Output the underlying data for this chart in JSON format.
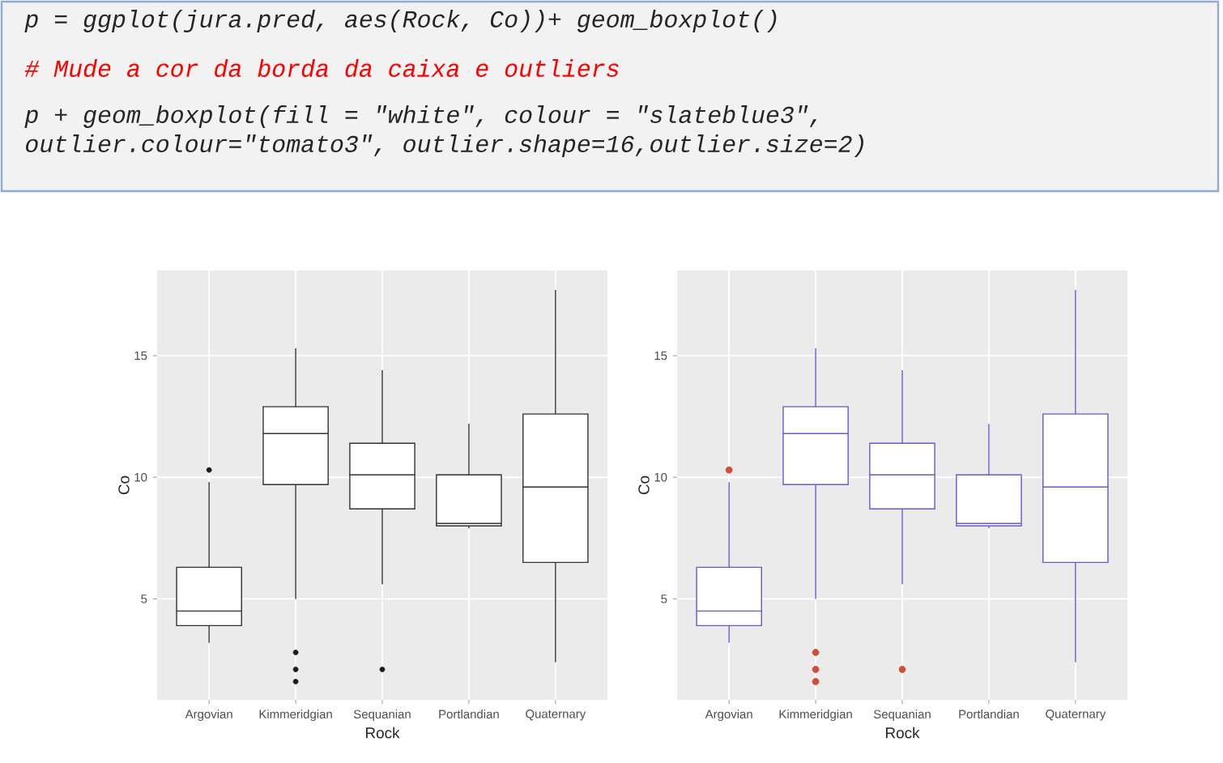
{
  "chart_data": [
    {
      "type": "other",
      "annotations": [
        "p = ggplot(jura.pred, aes(Rock, Co))+ geom_boxplot()",
        "# Mude a cor da borda da caixa e outliers",
        "p + geom_boxplot(fill = \"white\", colour = \"slateblue3\",",
        "outlier.colour=\"tomato3\", outlier.shape=16,outlier.size=2)"
      ]
    },
    {
      "type": "box",
      "xlabel": "Rock",
      "ylabel": "Co",
      "categories": [
        "Argovian",
        "Kimmeridgian",
        "Sequanian",
        "Portlandian",
        "Quaternary"
      ],
      "ylim": [
        0.85,
        18.5
      ],
      "yticks": [
        5,
        10,
        15
      ],
      "grid": true,
      "series": [
        {
          "type": "box",
          "color": "#333333",
          "boxes": [
            {
              "low": 3.2,
              "q1": 3.9,
              "median": 4.5,
              "q3": 6.3,
              "high": 9.8
            },
            {
              "low": 5.0,
              "q1": 9.7,
              "median": 11.8,
              "q3": 12.9,
              "high": 15.3
            },
            {
              "low": 5.6,
              "q1": 8.7,
              "median": 10.1,
              "q3": 11.4,
              "high": 14.4
            },
            {
              "low": 7.9,
              "q1": 8.0,
              "median": 8.1,
              "q3": 10.1,
              "high": 12.2
            },
            {
              "low": 2.4,
              "q1": 6.5,
              "median": 9.6,
              "q3": 12.6,
              "high": 17.7
            }
          ]
        },
        {
          "type": "scatter",
          "color": "#1a1a1a",
          "marker": "circle",
          "x": [
            "Argovian",
            "Kimmeridgian",
            "Kimmeridgian",
            "Kimmeridgian",
            "Sequanian"
          ],
          "values": [
            10.3,
            2.8,
            2.1,
            1.6,
            2.1
          ]
        }
      ]
    },
    {
      "type": "box",
      "xlabel": "Rock",
      "ylabel": "Co",
      "categories": [
        "Argovian",
        "Kimmeridgian",
        "Sequanian",
        "Portlandian",
        "Quaternary"
      ],
      "ylim": [
        0.85,
        18.5
      ],
      "yticks": [
        5,
        10,
        15
      ],
      "grid": true,
      "series": [
        {
          "type": "box",
          "color": "#6959cd",
          "boxes": [
            {
              "low": 3.2,
              "q1": 3.9,
              "median": 4.5,
              "q3": 6.3,
              "high": 9.8
            },
            {
              "low": 5.0,
              "q1": 9.7,
              "median": 11.8,
              "q3": 12.9,
              "high": 15.3
            },
            {
              "low": 5.6,
              "q1": 8.7,
              "median": 10.1,
              "q3": 11.4,
              "high": 14.4
            },
            {
              "low": 7.9,
              "q1": 8.0,
              "median": 8.1,
              "q3": 10.1,
              "high": 12.2
            },
            {
              "low": 2.4,
              "q1": 6.5,
              "median": 9.6,
              "q3": 12.6,
              "high": 17.7
            }
          ]
        },
        {
          "type": "scatter",
          "color": "#cd4f39",
          "marker": "circle",
          "x": [
            "Argovian",
            "Kimmeridgian",
            "Kimmeridgian",
            "Kimmeridgian",
            "Sequanian"
          ],
          "values": [
            10.3,
            2.8,
            2.1,
            1.6,
            2.1
          ]
        }
      ]
    }
  ]
}
